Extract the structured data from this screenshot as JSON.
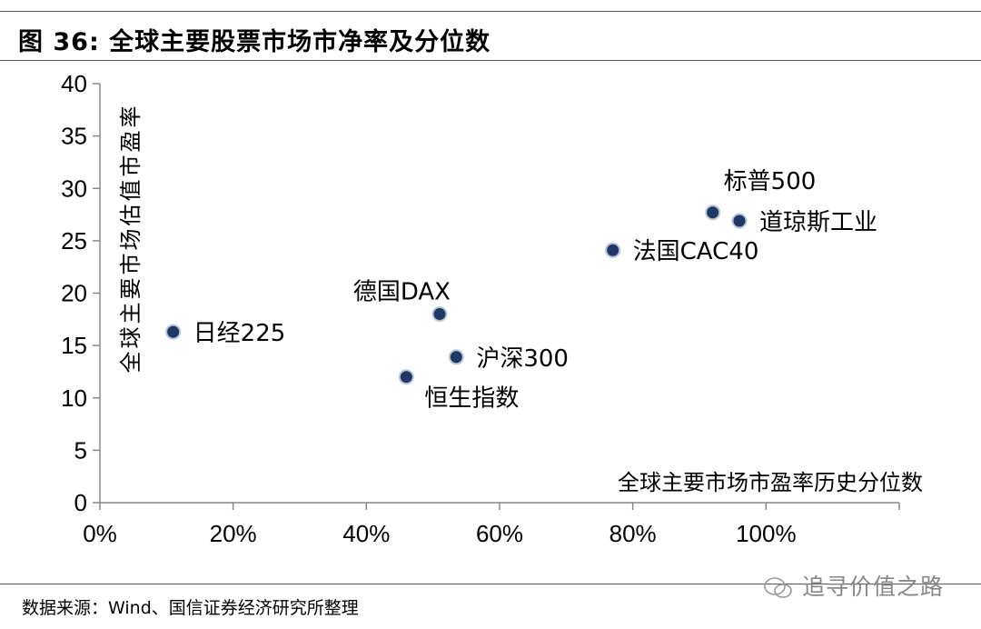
{
  "title": "图 36: 全球主要股票市场市净率及分位数",
  "source": "数据来源：Wind、国信证券经济研究所整理",
  "watermark": "追寻价值之路",
  "chart_data": {
    "type": "scatter",
    "title": "图 36: 全球主要股票市场市净率及分位数",
    "xlabel": "全球主要市场市盈率历史分位数",
    "ylabel": "全球主要市场估值市盈率",
    "xlim": [
      0,
      1.2
    ],
    "ylim": [
      0,
      40
    ],
    "xticks": [
      0,
      0.2,
      0.4,
      0.6,
      0.8,
      1.0
    ],
    "xtick_labels": [
      "0%",
      "20%",
      "40%",
      "60%",
      "80%",
      "100%"
    ],
    "yticks": [
      0,
      5,
      10,
      15,
      20,
      25,
      30,
      35,
      40
    ],
    "ytick_labels": [
      "0",
      "5",
      "10",
      "15",
      "20",
      "25",
      "30",
      "35",
      "40"
    ],
    "grid": false,
    "marker_color": "#1f3864",
    "points": [
      {
        "label": "日经225",
        "x": 0.11,
        "y": 16.3,
        "label_pos": "right"
      },
      {
        "label": "德国DAX",
        "x": 0.51,
        "y": 18.0,
        "label_pos": "above-left"
      },
      {
        "label": "沪深300",
        "x": 0.535,
        "y": 13.9,
        "label_pos": "right"
      },
      {
        "label": "恒生指数",
        "x": 0.46,
        "y": 12.0,
        "label_pos": "below-right"
      },
      {
        "label": "法国CAC40",
        "x": 0.77,
        "y": 24.1,
        "label_pos": "right"
      },
      {
        "label": "标普500",
        "x": 0.92,
        "y": 27.7,
        "label_pos": "above-right"
      },
      {
        "label": "道琼斯工业",
        "x": 0.96,
        "y": 26.9,
        "label_pos": "right"
      }
    ]
  }
}
